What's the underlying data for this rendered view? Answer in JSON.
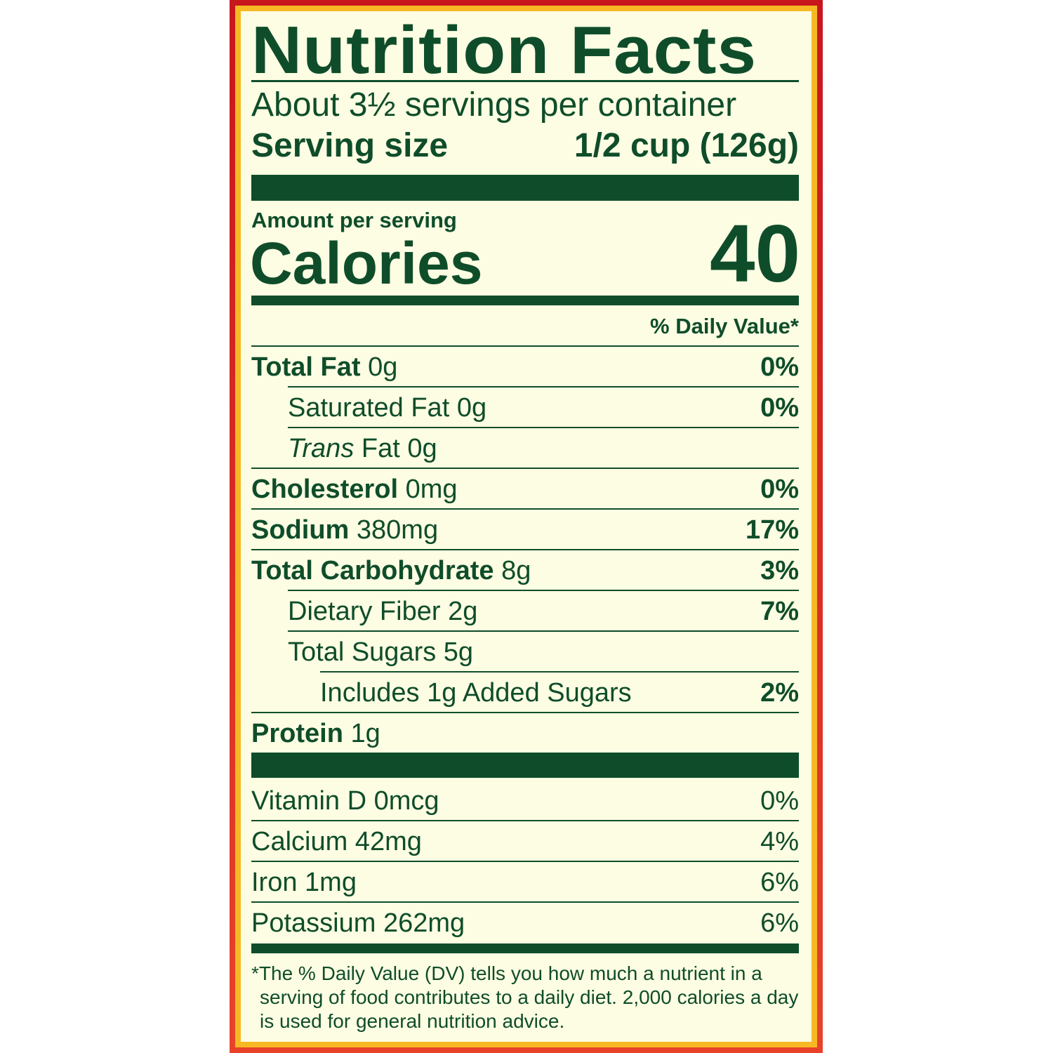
{
  "colors": {
    "text": "#0f4d2a",
    "background": "#fdfde3",
    "border_outer": "#d42a22",
    "border_inner": "#f6b923"
  },
  "title": "Nutrition Facts",
  "servings_per_container": "About 3½ servings per container",
  "serving_size_label": "Serving size",
  "serving_size_value": "1/2 cup (126g)",
  "amount_per_serving": "Amount per serving",
  "calories_label": "Calories",
  "calories_value": "40",
  "daily_value_header": "% Daily Value*",
  "nutrients": [
    {
      "name": "Total Fat",
      "amount": "0g",
      "dv": "0%"
    },
    {
      "name": "Saturated Fat",
      "amount": "0g",
      "dv": "0%"
    },
    {
      "name": "Trans",
      "name_rest": "Fat",
      "amount": "0g",
      "dv": ""
    },
    {
      "name": "Cholesterol",
      "amount": "0mg",
      "dv": "0%"
    },
    {
      "name": "Sodium",
      "amount": "380mg",
      "dv": "17%"
    },
    {
      "name": "Total Carbohydrate",
      "amount": "8g",
      "dv": "3%"
    },
    {
      "name": "Dietary Fiber",
      "amount": "2g",
      "dv": "7%"
    },
    {
      "name": "Total Sugars",
      "amount": "5g",
      "dv": ""
    },
    {
      "name": "Includes 1g Added Sugars",
      "amount": "",
      "dv": "2%"
    },
    {
      "name": "Protein",
      "amount": "1g",
      "dv": ""
    }
  ],
  "vitamins": [
    {
      "text": "Vitamin D 0mcg",
      "dv": "0%"
    },
    {
      "text": "Calcium 42mg",
      "dv": "4%"
    },
    {
      "text": "Iron 1mg",
      "dv": "6%"
    },
    {
      "text": "Potassium 262mg",
      "dv": "6%"
    }
  ],
  "footnote": "*The % Daily Value (DV) tells you how much a nutrient in a serving of food contributes to a daily diet. 2,000 calories a day is used for general nutrition advice."
}
